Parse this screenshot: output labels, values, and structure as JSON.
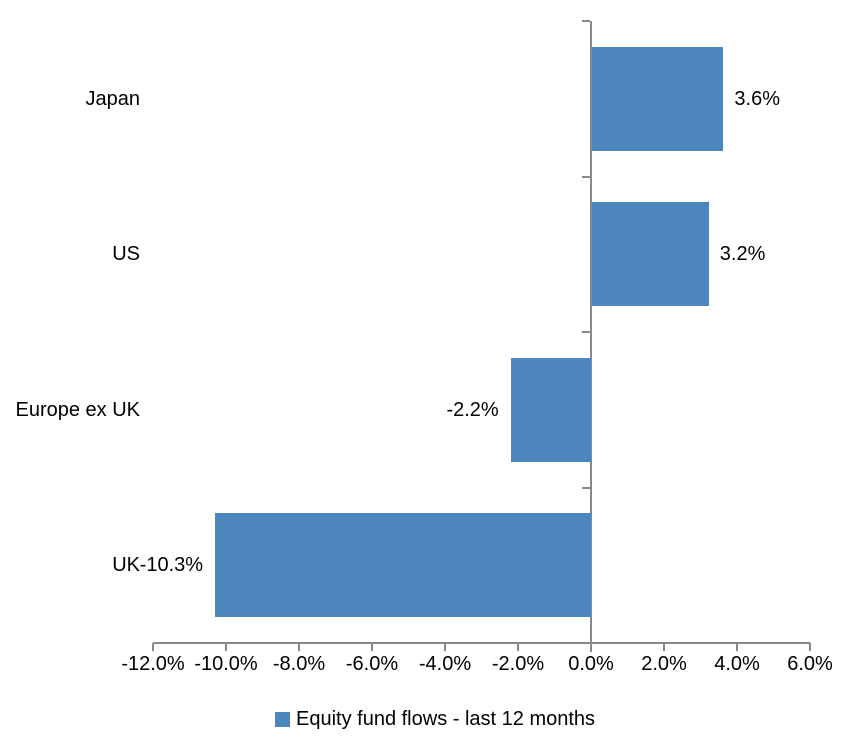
{
  "chart_data": {
    "type": "bar",
    "orientation": "horizontal",
    "title": "",
    "categories": [
      "Japan",
      "US",
      "Europe ex UK",
      "UK"
    ],
    "series": [
      {
        "name": "Equity fund flows - last 12 months",
        "values": [
          3.6,
          3.2,
          -2.2,
          -10.3
        ],
        "value_labels": [
          "3.6%",
          "3.2%",
          "-2.2%",
          "-10.3%"
        ]
      }
    ],
    "xlim": [
      -12,
      6
    ],
    "x_ticks": [
      -12,
      -10,
      -8,
      -6,
      -4,
      -2,
      0,
      2,
      4,
      6
    ],
    "x_tick_labels": [
      "-12.0%",
      "-10.0%",
      "-8.0%",
      "-6.0%",
      "-4.0%",
      "-2.0%",
      "0.0%",
      "2.0%",
      "4.0%",
      "6.0%"
    ],
    "grid": false,
    "legend_position": "bottom",
    "bar_color": "#4D86BD",
    "axis_color": "#898989",
    "text_color": "#000000"
  },
  "legend": {
    "label": "Equity fund flows - last 12 months",
    "swatch_color": "#4D86BD"
  }
}
